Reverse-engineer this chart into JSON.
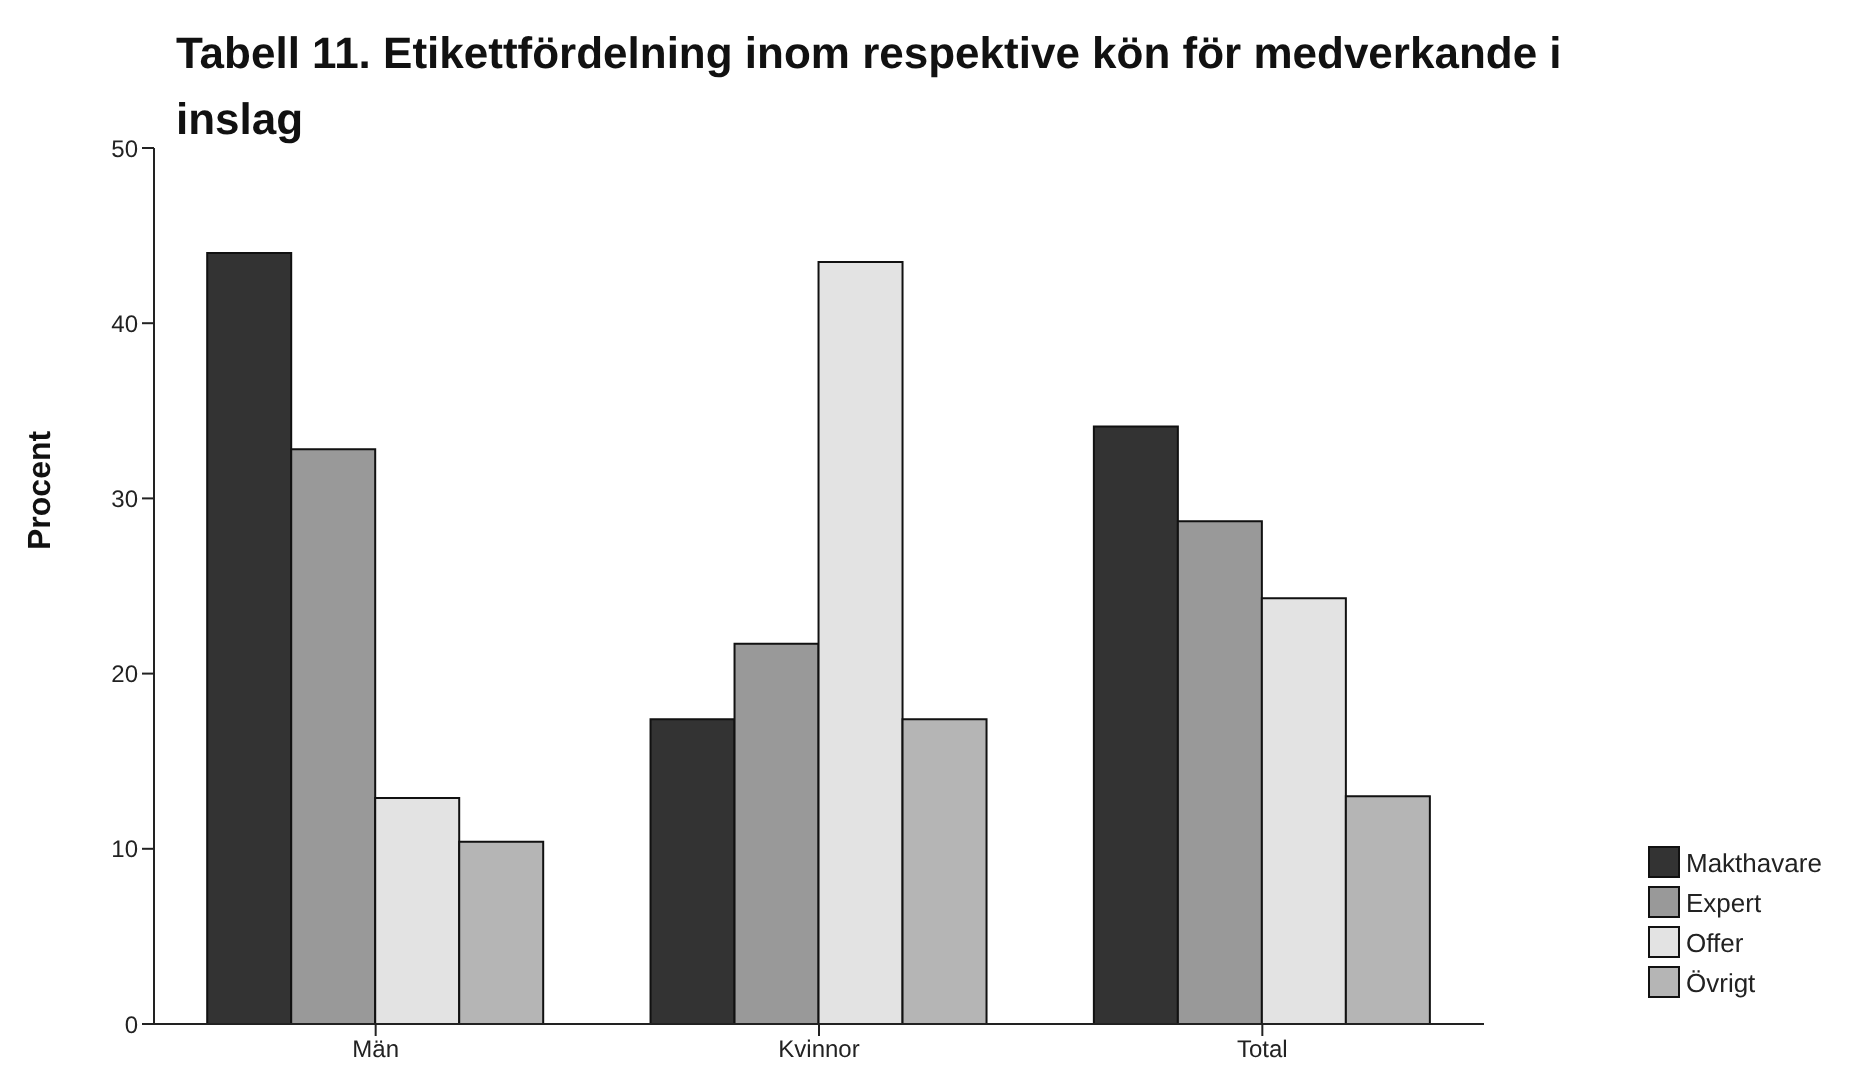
{
  "chart_data": {
    "type": "bar",
    "title": "Tabell 11. Etikettfördelning inom respektive kön för medverkande i inslag",
    "ylabel": "Procent",
    "categories": [
      "Män",
      "Kvinnor",
      "Total"
    ],
    "series": [
      {
        "name": "Makthavare",
        "color": "#333333",
        "values": [
          44.0,
          17.4,
          34.1
        ]
      },
      {
        "name": "Expert",
        "color": "#999999",
        "values": [
          32.8,
          21.7,
          28.7
        ]
      },
      {
        "name": "Offer",
        "color": "#e3e3e3",
        "values": [
          12.9,
          43.5,
          24.3
        ]
      },
      {
        "name": "Övrigt",
        "color": "#b5b5b5",
        "values": [
          10.4,
          17.4,
          13.0
        ]
      }
    ],
    "ylim": [
      0,
      50
    ],
    "yticks": [
      0,
      10,
      20,
      30,
      40,
      50
    ],
    "grid": false,
    "legend": "bottom right"
  }
}
